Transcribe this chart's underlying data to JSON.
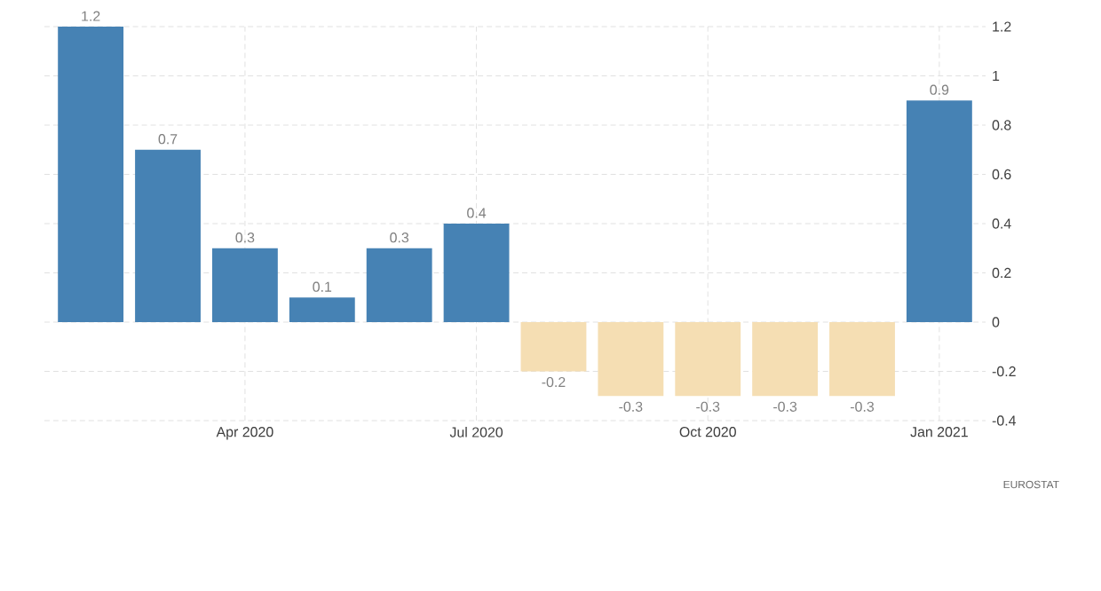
{
  "chart_data": {
    "type": "bar",
    "categories": [
      null,
      null,
      "Apr 2020",
      null,
      null,
      "Jul 2020",
      null,
      null,
      "Oct 2020",
      null,
      null,
      "Jan 2021"
    ],
    "values": [
      1.2,
      0.7,
      0.3,
      0.1,
      0.3,
      0.4,
      -0.2,
      -0.3,
      -0.3,
      -0.3,
      -0.3,
      0.9
    ],
    "colors": [
      "#4682b4",
      "#4682b4",
      "#4682b4",
      "#4682b4",
      "#4682b4",
      "#4682b4",
      "#f5deb3",
      "#f5deb3",
      "#f5deb3",
      "#f5deb3",
      "#f5deb3",
      "#4682b4"
    ],
    "ylim": [
      -0.4,
      1.2
    ],
    "yticks": [
      -0.4,
      -0.2,
      0,
      0.2,
      0.4,
      0.6,
      0.8,
      1,
      1.2
    ],
    "grid": true,
    "data_labels": true,
    "annotations": [
      "EUROSTAT"
    ]
  }
}
